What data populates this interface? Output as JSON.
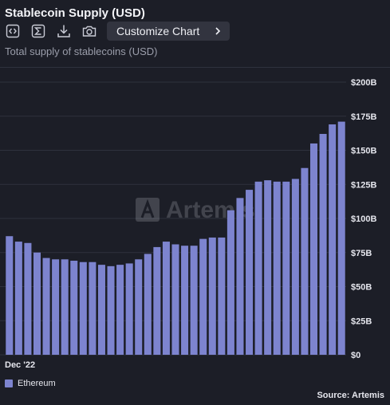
{
  "header": {
    "title": "Stablecoin Supply (USD)",
    "subtitle": "Total supply of stablecoins (USD)",
    "customize_label": "Customize Chart"
  },
  "toolbar": {
    "icons": [
      "embed-code-icon",
      "sigma-icon",
      "download-icon",
      "camera-icon",
      "chevron-right-icon"
    ]
  },
  "watermark": "Artemis",
  "footer": {
    "source": "Source: Artemis"
  },
  "colors": {
    "background": "#1c1e27",
    "bar": "#7d84cf",
    "grid": "#2e313d",
    "axis_text": "#e6e7ee"
  },
  "chart_data": {
    "type": "bar",
    "title": "Stablecoin Supply (USD)",
    "subtitle": "Total supply of stablecoins (USD)",
    "x_tick_label": "Dec '22",
    "y_ticks": [
      "$0",
      "$25B",
      "$50B",
      "$75B",
      "$100B",
      "$125B",
      "$150B",
      "$175B",
      "$200B"
    ],
    "ylim": [
      0,
      200
    ],
    "grid": true,
    "legend_position": "bottom-left",
    "series": [
      {
        "name": "Ethereum",
        "values": [
          87,
          83,
          82,
          75,
          71,
          70,
          70,
          69,
          68,
          68,
          66,
          65,
          66,
          67,
          70,
          74,
          79,
          83,
          81,
          80,
          80,
          85,
          86,
          86,
          106,
          115,
          121,
          127,
          128,
          127,
          127,
          129,
          137,
          155,
          162,
          169,
          171
        ]
      }
    ]
  }
}
